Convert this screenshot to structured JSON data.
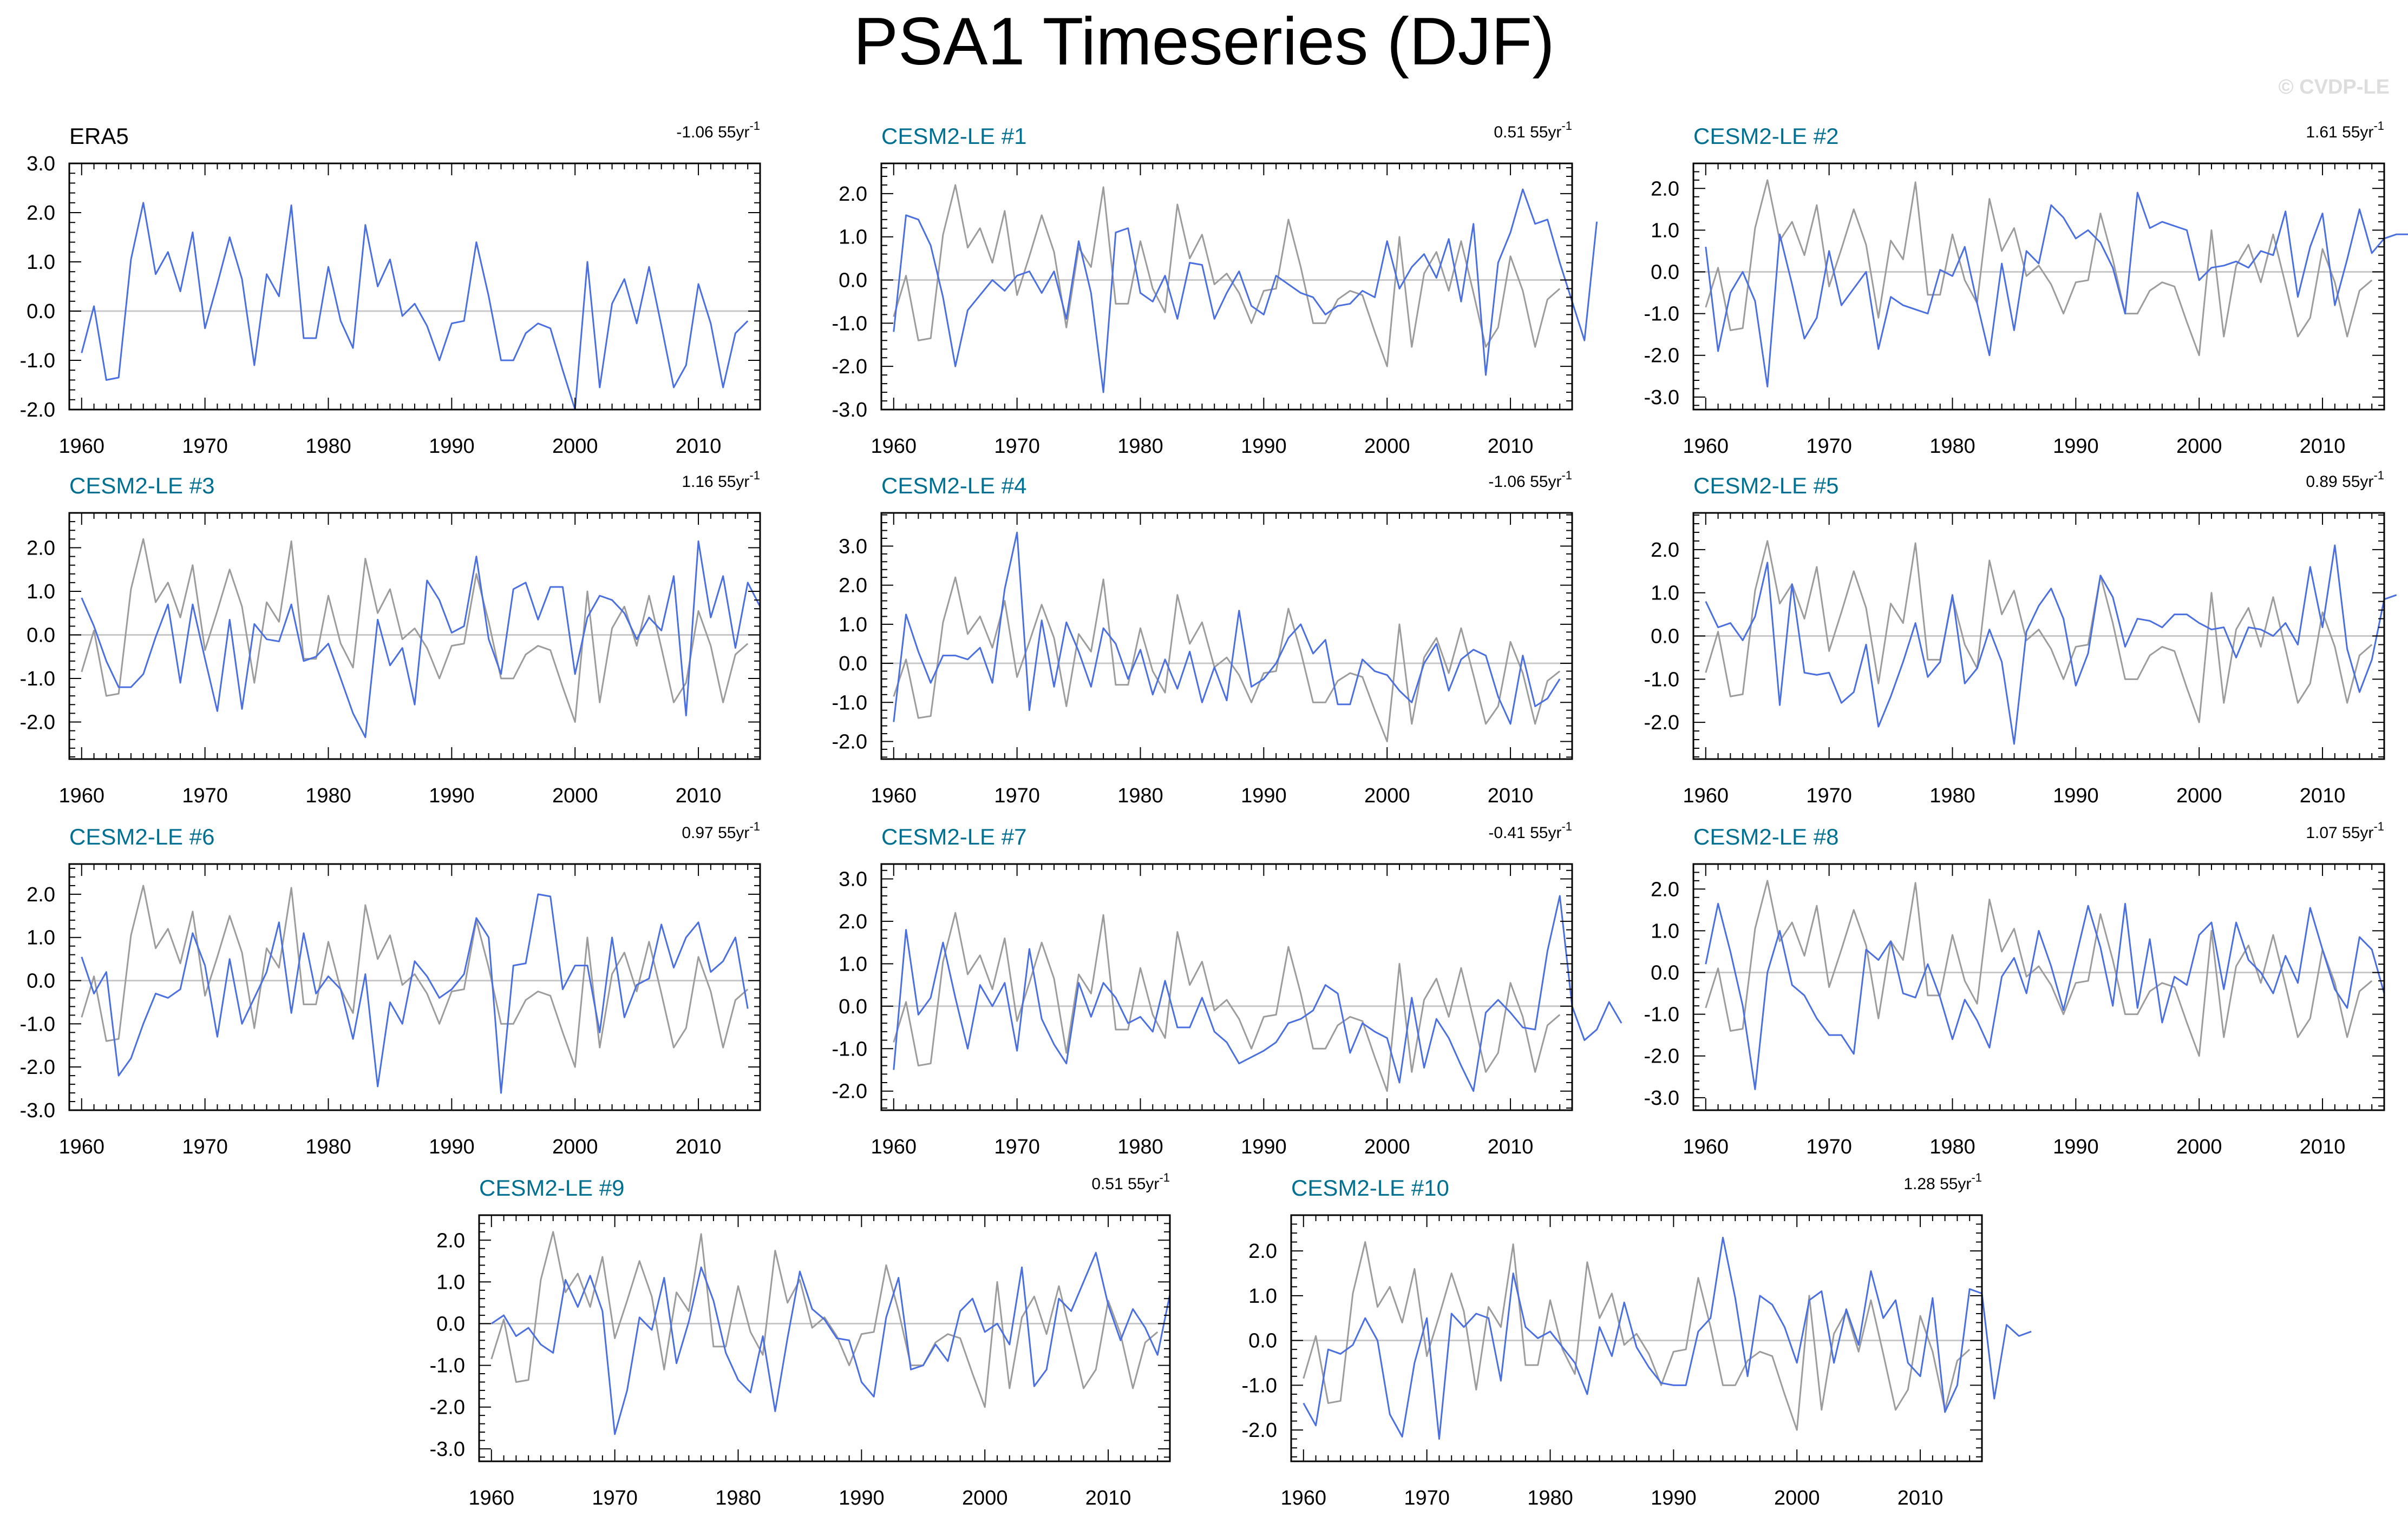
{
  "title": "PSA1 Timeseries (DJF)",
  "copyright": "© CVDP-LE",
  "colors": {
    "obs_line": "#4a6fe0",
    "member_line": "#4a6fe0",
    "obs_overlay": "#9c9c9c",
    "member_title": "#007092",
    "obs_title": "#000000",
    "zero_line": "#c8c8c8"
  },
  "chart_data": [
    {
      "type": "line",
      "title": "ERA5",
      "trend": "-1.06 55yr",
      "trend_exponent": "-1",
      "x_start": 1960,
      "x_end": 2014,
      "xlim": [
        1959,
        2015
      ],
      "xticks": [
        "1960",
        "1970",
        "1980",
        "1990",
        "2000",
        "2010"
      ],
      "ylim": [
        -2.0,
        3.0
      ],
      "yticks": [
        "3.0",
        "2.0",
        "1.0",
        "0.0",
        "-1.0",
        "-2.0"
      ],
      "series": [
        {
          "values": [
            -0.85,
            0.1,
            -1.4,
            -1.35,
            1.05,
            2.2,
            0.75,
            1.2,
            0.4,
            1.6,
            -0.35,
            0.55,
            1.5,
            0.65,
            -1.1,
            0.75,
            0.3,
            2.15,
            -0.55,
            -0.55,
            0.9,
            -0.2,
            -0.75,
            1.75,
            0.5,
            1.05,
            -0.1,
            0.15,
            -0.3,
            -1.0,
            -0.25,
            -0.2,
            1.4,
            0.3,
            -1.0,
            -1.0,
            -0.45,
            -0.25,
            -0.35,
            -1.2,
            -2.0,
            1.0,
            -1.55,
            0.15,
            0.65,
            -0.25,
            0.9,
            -0.3,
            -1.55,
            -1.1,
            0.55,
            -0.25,
            -1.55,
            -0.45,
            -0.2
          ]
        }
      ]
    },
    {
      "type": "line",
      "title": "CESM2-LE #1",
      "trend": "0.51 55yr",
      "trend_exponent": "-1",
      "x_start": 1960,
      "x_end": 2014,
      "xlim": [
        1959,
        2015
      ],
      "xticks": [
        "1960",
        "1970",
        "1980",
        "1990",
        "2000",
        "2010"
      ],
      "ylim": [
        -3.0,
        2.7
      ],
      "yticks": [
        "2.0",
        "1.0",
        "0.0",
        "-1.0",
        "-2.0",
        "-3.0"
      ],
      "series": [
        {
          "values": [
            -1.2,
            1.5,
            1.4,
            0.8,
            -0.4,
            -2.0,
            -0.7,
            -0.35,
            0.0,
            -0.25,
            0.1,
            0.2,
            -0.3,
            0.2,
            -0.9,
            0.9,
            -0.3,
            -2.6,
            1.1,
            1.2,
            -0.3,
            -0.5,
            0.1,
            -0.9,
            0.4,
            0.35,
            -0.9,
            -0.3,
            0.2,
            -0.6,
            -0.8,
            0.1,
            -0.1,
            -0.3,
            -0.4,
            -0.8,
            -0.6,
            -0.55,
            -0.25,
            -0.4,
            0.9,
            -0.2,
            0.3,
            0.6,
            0.05,
            0.95,
            -0.5,
            1.3,
            -2.2,
            0.4,
            1.1,
            2.1,
            1.3,
            1.4,
            0.4,
            -0.5,
            -1.4,
            1.35
          ]
        }
      ]
    },
    {
      "type": "line",
      "title": "CESM2-LE #2",
      "trend": "1.61 55yr",
      "trend_exponent": "-1",
      "x_start": 1960,
      "x_end": 2014,
      "xlim": [
        1959,
        2015
      ],
      "xticks": [
        "1960",
        "1970",
        "1980",
        "1990",
        "2000",
        "2010"
      ],
      "ylim": [
        -3.3,
        2.6
      ],
      "yticks": [
        "2.0",
        "1.0",
        "0.0",
        "-1.0",
        "-2.0",
        "-3.0"
      ],
      "series": [
        {
          "values": [
            0.6,
            -1.9,
            -0.5,
            0.0,
            -0.7,
            -2.75,
            0.9,
            -0.3,
            -1.6,
            -1.1,
            0.5,
            -0.8,
            -0.4,
            0.0,
            -1.85,
            -0.6,
            -0.8,
            -0.9,
            -1.0,
            0.05,
            -0.1,
            0.6,
            -0.75,
            -2.0,
            0.2,
            -1.4,
            0.5,
            0.2,
            1.6,
            1.3,
            0.8,
            1.0,
            0.7,
            0.1,
            -1.0,
            1.9,
            1.05,
            1.2,
            1.1,
            1.0,
            -0.2,
            0.1,
            0.15,
            0.25,
            0.1,
            0.5,
            0.4,
            1.45,
            -0.6,
            0.6,
            1.4,
            -0.8,
            0.3,
            1.5,
            0.45,
            0.8,
            0.9,
            0.9
          ]
        }
      ]
    },
    {
      "type": "line",
      "title": "CESM2-LE #3",
      "trend": "1.16 55yr",
      "trend_exponent": "-1",
      "x_start": 1960,
      "x_end": 2014,
      "xlim": [
        1959,
        2015
      ],
      "xticks": [
        "1960",
        "1970",
        "1980",
        "1990",
        "2000",
        "2010"
      ],
      "ylim": [
        -2.85,
        2.8
      ],
      "yticks": [
        "2.0",
        "1.0",
        "0.0",
        "-1.0",
        "-2.0"
      ],
      "series": [
        {
          "values": [
            0.85,
            0.2,
            -0.6,
            -1.2,
            -1.2,
            -0.9,
            -0.05,
            0.7,
            -1.1,
            0.7,
            -0.55,
            -1.75,
            0.35,
            -1.7,
            0.25,
            -0.1,
            -0.15,
            0.7,
            -0.6,
            -0.5,
            -0.2,
            -1.0,
            -1.8,
            -2.35,
            0.35,
            -0.7,
            -0.3,
            -1.6,
            1.25,
            0.8,
            0.05,
            0.2,
            1.8,
            -0.1,
            -0.9,
            1.05,
            1.2,
            0.35,
            1.1,
            1.1,
            -0.9,
            0.4,
            0.9,
            0.8,
            0.5,
            -0.1,
            0.4,
            0.1,
            1.35,
            -1.85,
            2.15,
            0.4,
            1.35,
            -0.3,
            1.2,
            0.65
          ]
        }
      ]
    },
    {
      "type": "line",
      "title": "CESM2-LE #4",
      "trend": "-1.06 55yr",
      "trend_exponent": "-1",
      "x_start": 1960,
      "x_end": 2014,
      "xlim": [
        1959,
        2015
      ],
      "xticks": [
        "1960",
        "1970",
        "1980",
        "1990",
        "2000",
        "2010"
      ],
      "ylim": [
        -2.45,
        3.85
      ],
      "yticks": [
        "3.0",
        "2.0",
        "1.0",
        "0.0",
        "-1.0",
        "-2.0"
      ],
      "series": [
        {
          "values": [
            -1.5,
            1.25,
            0.3,
            -0.5,
            0.2,
            0.2,
            0.1,
            0.4,
            -0.5,
            1.9,
            3.35,
            -1.2,
            1.1,
            -0.6,
            1.05,
            0.3,
            -0.6,
            0.9,
            0.5,
            -0.4,
            0.35,
            -0.8,
            0.1,
            -0.65,
            0.3,
            -1.0,
            -0.1,
            -0.95,
            1.35,
            -0.6,
            -0.4,
            0.0,
            0.65,
            1.0,
            0.25,
            0.6,
            -1.05,
            -1.05,
            0.1,
            -0.2,
            -0.3,
            -0.7,
            -1.0,
            0.0,
            0.5,
            -0.7,
            0.1,
            0.35,
            0.2,
            -0.85,
            -1.55,
            0.2,
            -1.1,
            -0.9,
            -0.4
          ]
        }
      ]
    },
    {
      "type": "line",
      "title": "CESM2-LE #5",
      "trend": "0.89 55yr",
      "trend_exponent": "-1",
      "x_start": 1960,
      "x_end": 2014,
      "xlim": [
        1959,
        2015
      ],
      "xticks": [
        "1960",
        "1970",
        "1980",
        "1990",
        "2000",
        "2010"
      ],
      "ylim": [
        -2.85,
        2.85
      ],
      "yticks": [
        "2.0",
        "1.0",
        "0.0",
        "-1.0",
        "-2.0"
      ],
      "series": [
        {
          "values": [
            0.8,
            0.2,
            0.3,
            -0.1,
            0.45,
            1.7,
            -1.6,
            1.2,
            -0.85,
            -0.9,
            -0.85,
            -1.55,
            -1.3,
            -0.2,
            -2.1,
            -1.4,
            -0.6,
            0.3,
            -0.95,
            -0.6,
            0.95,
            -1.1,
            -0.75,
            0.15,
            -0.6,
            -2.5,
            0.1,
            0.7,
            1.1,
            0.4,
            -1.15,
            -0.4,
            1.4,
            0.9,
            -0.25,
            0.4,
            0.35,
            0.2,
            0.5,
            0.5,
            0.3,
            0.15,
            0.2,
            -0.5,
            0.2,
            0.15,
            0.0,
            0.3,
            -0.2,
            1.6,
            0.2,
            2.1,
            -0.3,
            -1.3,
            -0.55,
            0.85,
            0.95
          ]
        }
      ]
    },
    {
      "type": "line",
      "title": "CESM2-LE #6",
      "trend": "0.97 55yr",
      "trend_exponent": "-1",
      "x_start": 1960,
      "x_end": 2014,
      "xlim": [
        1959,
        2015
      ],
      "xticks": [
        "1960",
        "1970",
        "1980",
        "1990",
        "2000",
        "2010"
      ],
      "ylim": [
        -3.0,
        2.7
      ],
      "yticks": [
        "2.0",
        "1.0",
        "0.0",
        "-1.0",
        "-2.0",
        "-3.0"
      ],
      "series": [
        {
          "values": [
            0.55,
            -0.3,
            0.2,
            -2.2,
            -1.8,
            -1.0,
            -0.3,
            -0.4,
            -0.2,
            1.1,
            0.35,
            -1.3,
            0.5,
            -1.0,
            -0.4,
            0.2,
            1.35,
            -0.75,
            1.1,
            -0.3,
            0.1,
            -0.2,
            -1.35,
            0.15,
            -2.45,
            -0.5,
            -1.0,
            0.45,
            0.1,
            -0.4,
            -0.2,
            0.15,
            1.45,
            1.0,
            -2.6,
            0.35,
            0.4,
            2.0,
            1.95,
            -0.2,
            0.35,
            0.35,
            -1.2,
            1.0,
            -0.85,
            -0.1,
            0.05,
            1.3,
            0.3,
            1.0,
            1.35,
            0.2,
            0.45,
            1.0,
            -0.65
          ]
        }
      ]
    },
    {
      "type": "line",
      "title": "CESM2-LE #7",
      "trend": "-0.41 55yr",
      "trend_exponent": "-1",
      "x_start": 1960,
      "x_end": 2014,
      "xlim": [
        1959,
        2015
      ],
      "xticks": [
        "1960",
        "1970",
        "1980",
        "1990",
        "2000",
        "2010"
      ],
      "ylim": [
        -2.45,
        3.35
      ],
      "yticks": [
        "3.0",
        "2.0",
        "1.0",
        "0.0",
        "-1.0",
        "-2.0"
      ],
      "series": [
        {
          "values": [
            -1.5,
            1.8,
            -0.2,
            0.2,
            1.5,
            0.2,
            -1.0,
            0.5,
            0.0,
            0.55,
            -1.05,
            1.35,
            -0.3,
            -0.9,
            -1.35,
            0.55,
            -0.25,
            0.55,
            0.2,
            -0.4,
            -0.25,
            -0.6,
            0.6,
            -0.5,
            -0.5,
            0.2,
            -0.6,
            -0.85,
            -1.35,
            -1.2,
            -1.05,
            -0.85,
            -0.4,
            -0.3,
            -0.1,
            0.5,
            0.3,
            -1.1,
            -0.4,
            -0.6,
            -0.75,
            -1.8,
            0.2,
            -1.45,
            -0.3,
            -0.75,
            -1.4,
            -2.0,
            -0.15,
            0.15,
            -0.15,
            -0.5,
            -0.55,
            1.3,
            2.6,
            0.0,
            -0.8,
            -0.55,
            0.1,
            -0.4
          ]
        }
      ]
    },
    {
      "type": "line",
      "title": "CESM2-LE #8",
      "trend": "1.07 55yr",
      "trend_exponent": "-1",
      "x_start": 1960,
      "x_end": 2014,
      "xlim": [
        1959,
        2015
      ],
      "xticks": [
        "1960",
        "1970",
        "1980",
        "1990",
        "2000",
        "2010"
      ],
      "ylim": [
        -3.3,
        2.6
      ],
      "yticks": [
        "2.0",
        "1.0",
        "0.0",
        "-1.0",
        "-2.0",
        "-3.0"
      ],
      "series": [
        {
          "values": [
            0.2,
            1.65,
            0.5,
            -0.8,
            -2.8,
            0.0,
            1.0,
            -0.3,
            -0.55,
            -1.1,
            -1.5,
            -1.5,
            -1.95,
            0.55,
            0.3,
            0.75,
            -0.5,
            -0.6,
            0.2,
            -0.6,
            -1.6,
            -0.65,
            -1.15,
            -1.8,
            -0.1,
            0.35,
            -0.5,
            1.0,
            0.15,
            -0.9,
            0.35,
            1.6,
            0.6,
            -0.8,
            1.65,
            -0.85,
            0.8,
            -1.2,
            -0.1,
            -0.3,
            0.9,
            1.2,
            -0.4,
            1.2,
            0.3,
            0.0,
            -0.5,
            0.4,
            -0.25,
            1.55,
            0.55,
            -0.4,
            -0.85,
            0.85,
            0.55,
            -0.5
          ]
        }
      ]
    },
    {
      "type": "line",
      "title": "CESM2-LE #9",
      "trend": "0.51 55yr",
      "trend_exponent": "-1",
      "x_start": 1960,
      "x_end": 2014,
      "xlim": [
        1959,
        2015
      ],
      "xticks": [
        "1960",
        "1970",
        "1980",
        "1990",
        "2000",
        "2010"
      ],
      "ylim": [
        -3.3,
        2.6
      ],
      "yticks": [
        "2.0",
        "1.0",
        "0.0",
        "-1.0",
        "-2.0",
        "-3.0"
      ],
      "series": [
        {
          "values": [
            0.0,
            0.2,
            -0.3,
            -0.1,
            -0.5,
            -0.7,
            1.05,
            0.4,
            1.15,
            0.3,
            -2.65,
            -1.6,
            0.15,
            -0.15,
            1.1,
            -0.95,
            0.05,
            1.35,
            0.55,
            -0.7,
            -1.35,
            -1.65,
            -0.3,
            -2.1,
            -0.35,
            1.25,
            0.35,
            0.1,
            -0.35,
            -0.4,
            -1.4,
            -1.75,
            0.15,
            1.1,
            -1.1,
            -1.0,
            -0.5,
            -0.9,
            0.3,
            0.6,
            -0.2,
            0.0,
            -0.5,
            1.35,
            -1.5,
            -1.1,
            0.6,
            0.3,
            1.0,
            1.7,
            0.45,
            -0.4,
            0.35,
            -0.1,
            -0.75,
            0.7
          ]
        }
      ]
    },
    {
      "type": "line",
      "title": "CESM2-LE #10",
      "trend": "1.28 55yr",
      "trend_exponent": "-1",
      "x_start": 1960,
      "x_end": 2014,
      "xlim": [
        1959,
        2015
      ],
      "xticks": [
        "1960",
        "1970",
        "1980",
        "1990",
        "2000",
        "2010"
      ],
      "ylim": [
        -2.7,
        2.8
      ],
      "yticks": [
        "2.0",
        "1.0",
        "0.0",
        "-1.0",
        "-2.0"
      ],
      "series": [
        {
          "values": [
            -1.4,
            -1.9,
            -0.2,
            -0.3,
            -0.1,
            0.5,
            0.0,
            -1.65,
            -2.15,
            -0.5,
            0.5,
            -2.2,
            0.6,
            0.3,
            0.6,
            0.5,
            -0.9,
            1.5,
            0.3,
            0.05,
            0.2,
            -0.15,
            -0.5,
            -1.2,
            0.3,
            -0.35,
            0.85,
            -0.15,
            -0.6,
            -0.95,
            -1.0,
            -1.0,
            0.2,
            0.5,
            2.3,
            0.95,
            -0.8,
            1.0,
            0.8,
            0.3,
            -0.5,
            0.9,
            1.1,
            -0.5,
            0.7,
            -0.1,
            1.55,
            0.5,
            0.9,
            -0.5,
            -0.8,
            0.95,
            -1.6,
            -1.0,
            1.15,
            1.05,
            -1.3,
            0.35,
            0.1,
            0.2
          ]
        }
      ]
    }
  ],
  "obs_overlay": [
    -0.85,
    0.1,
    -1.4,
    -1.35,
    1.05,
    2.2,
    0.75,
    1.2,
    0.4,
    1.6,
    -0.35,
    0.55,
    1.5,
    0.65,
    -1.1,
    0.75,
    0.3,
    2.15,
    -0.55,
    -0.55,
    0.9,
    -0.2,
    -0.75,
    1.75,
    0.5,
    1.05,
    -0.1,
    0.15,
    -0.3,
    -1.0,
    -0.25,
    -0.2,
    1.4,
    0.3,
    -1.0,
    -1.0,
    -0.45,
    -0.25,
    -0.35,
    -1.2,
    -2.0,
    1.0,
    -1.55,
    0.15,
    0.65,
    -0.25,
    0.9,
    -0.3,
    -1.55,
    -1.1,
    0.55,
    -0.25,
    -1.55,
    -0.45,
    -0.2
  ]
}
